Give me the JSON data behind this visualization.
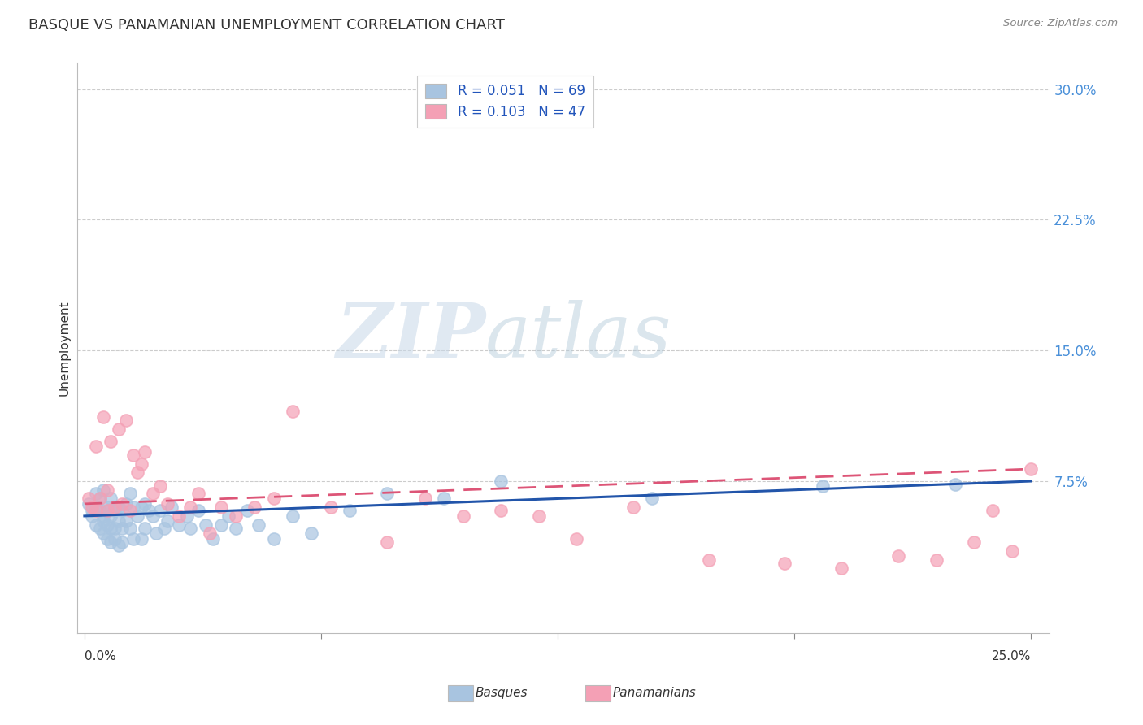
{
  "title": "BASQUE VS PANAMANIAN UNEMPLOYMENT CORRELATION CHART",
  "source": "Source: ZipAtlas.com",
  "ylabel": "Unemployment",
  "yticks": [
    "7.5%",
    "15.0%",
    "22.5%",
    "30.0%"
  ],
  "ytick_vals": [
    0.075,
    0.15,
    0.225,
    0.3
  ],
  "xtick_vals": [
    0.0,
    0.0625,
    0.125,
    0.1875,
    0.25
  ],
  "xlim": [
    -0.002,
    0.255
  ],
  "ylim": [
    -0.012,
    0.315
  ],
  "legend1_label": "R = 0.051   N = 69",
  "legend2_label": "R = 0.103   N = 47",
  "basque_color": "#a8c4e0",
  "panama_color": "#f4a0b5",
  "basque_line_color": "#2255aa",
  "panama_line_color": "#dd5577",
  "watermark_zip": "ZIP",
  "watermark_atlas": "atlas",
  "basque_x": [
    0.001,
    0.002,
    0.002,
    0.003,
    0.003,
    0.003,
    0.004,
    0.004,
    0.004,
    0.005,
    0.005,
    0.005,
    0.005,
    0.006,
    0.006,
    0.006,
    0.006,
    0.007,
    0.007,
    0.007,
    0.007,
    0.008,
    0.008,
    0.008,
    0.009,
    0.009,
    0.009,
    0.01,
    0.01,
    0.01,
    0.011,
    0.011,
    0.012,
    0.012,
    0.013,
    0.013,
    0.014,
    0.015,
    0.015,
    0.016,
    0.016,
    0.017,
    0.018,
    0.019,
    0.02,
    0.021,
    0.022,
    0.023,
    0.025,
    0.027,
    0.028,
    0.03,
    0.032,
    0.034,
    0.036,
    0.038,
    0.04,
    0.043,
    0.046,
    0.05,
    0.055,
    0.06,
    0.07,
    0.08,
    0.095,
    0.11,
    0.15,
    0.195,
    0.23
  ],
  "basque_y": [
    0.062,
    0.058,
    0.055,
    0.068,
    0.06,
    0.05,
    0.065,
    0.058,
    0.048,
    0.055,
    0.045,
    0.07,
    0.052,
    0.06,
    0.05,
    0.042,
    0.058,
    0.065,
    0.048,
    0.055,
    0.04,
    0.058,
    0.048,
    0.042,
    0.06,
    0.052,
    0.038,
    0.058,
    0.048,
    0.04,
    0.062,
    0.052,
    0.068,
    0.048,
    0.06,
    0.042,
    0.055,
    0.06,
    0.042,
    0.062,
    0.048,
    0.058,
    0.055,
    0.045,
    0.058,
    0.048,
    0.052,
    0.06,
    0.05,
    0.055,
    0.048,
    0.058,
    0.05,
    0.042,
    0.05,
    0.055,
    0.048,
    0.058,
    0.05,
    0.042,
    0.055,
    0.045,
    0.058,
    0.068,
    0.065,
    0.075,
    0.065,
    0.072,
    0.073
  ],
  "panama_x": [
    0.001,
    0.002,
    0.003,
    0.003,
    0.004,
    0.005,
    0.006,
    0.006,
    0.007,
    0.008,
    0.009,
    0.01,
    0.011,
    0.012,
    0.013,
    0.014,
    0.015,
    0.016,
    0.018,
    0.02,
    0.022,
    0.025,
    0.028,
    0.03,
    0.033,
    0.036,
    0.04,
    0.045,
    0.05,
    0.055,
    0.065,
    0.08,
    0.09,
    0.1,
    0.11,
    0.12,
    0.13,
    0.145,
    0.165,
    0.185,
    0.2,
    0.215,
    0.225,
    0.235,
    0.24,
    0.245,
    0.25
  ],
  "panama_y": [
    0.065,
    0.06,
    0.095,
    0.058,
    0.065,
    0.112,
    0.058,
    0.07,
    0.098,
    0.06,
    0.105,
    0.062,
    0.11,
    0.058,
    0.09,
    0.08,
    0.085,
    0.092,
    0.068,
    0.072,
    0.062,
    0.055,
    0.06,
    0.068,
    0.045,
    0.06,
    0.055,
    0.06,
    0.065,
    0.115,
    0.06,
    0.04,
    0.065,
    0.055,
    0.058,
    0.055,
    0.042,
    0.06,
    0.03,
    0.028,
    0.025,
    0.032,
    0.03,
    0.04,
    0.058,
    0.035,
    0.082
  ]
}
